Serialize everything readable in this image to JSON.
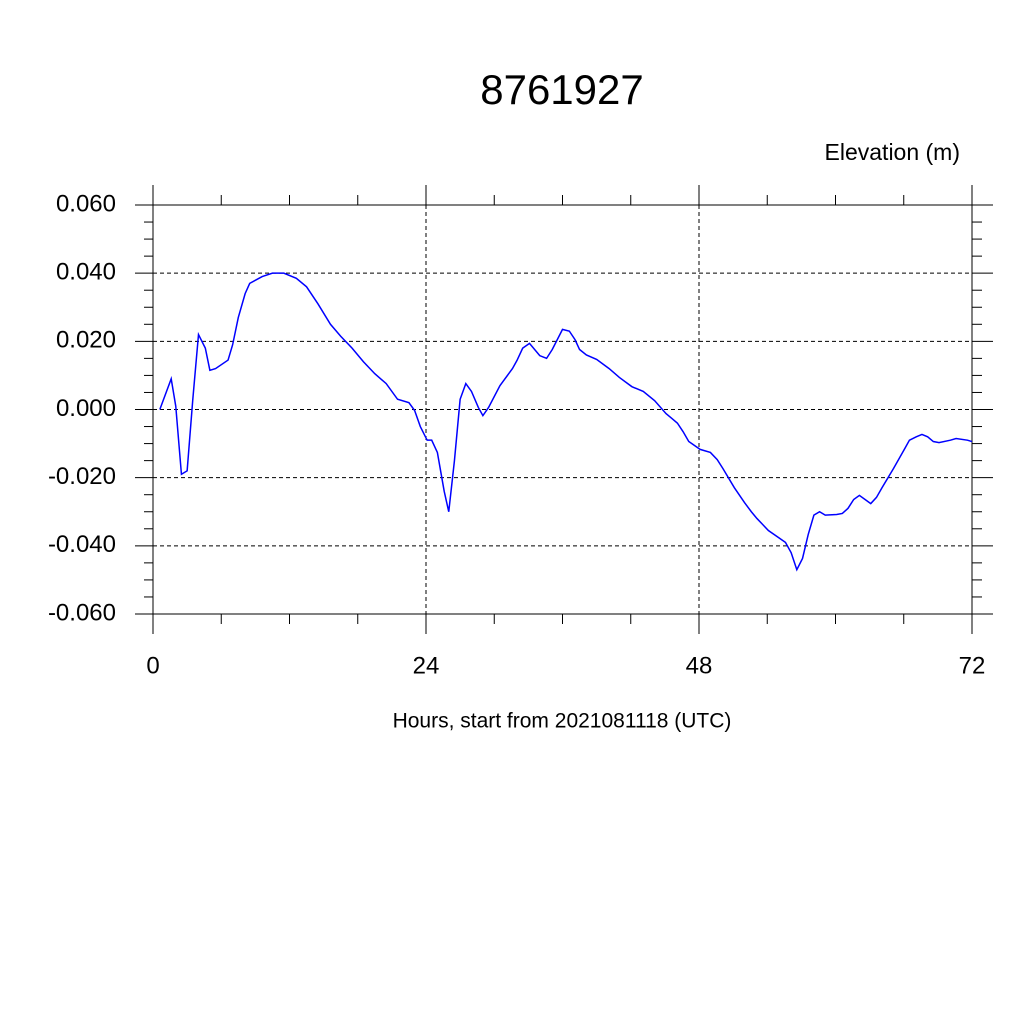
{
  "chart_data": {
    "type": "line",
    "title": "8761927",
    "subtitle": "Elevation (m)",
    "x_label": "Hours, start from 2021081118 (UTC)",
    "xlim": [
      0,
      72
    ],
    "xticks": [
      0,
      24,
      48,
      72
    ],
    "ylim": [
      -0.06,
      0.06
    ],
    "yticks": [
      {
        "value": -0.06,
        "label": "-0.060"
      },
      {
        "value": -0.04,
        "label": "-0.040"
      },
      {
        "value": -0.02,
        "label": "-0.020"
      },
      {
        "value": 0,
        "label": "0.000"
      },
      {
        "value": 0.02,
        "label": "0.020"
      },
      {
        "value": 0.04,
        "label": "0.040"
      },
      {
        "value": 0.06,
        "label": "0.060"
      }
    ],
    "grid": true,
    "x": [
      0.6,
      1.6,
      2.0,
      2.5,
      3.0,
      3.5,
      4.0,
      4.6,
      5.0,
      5.5,
      6.6,
      7.0,
      7.5,
      8.1,
      8.5,
      9.6,
      10.5,
      11.5,
      12.6,
      13.5,
      14.5,
      15.6,
      16.5,
      17.5,
      18.5,
      19.5,
      20.5,
      21.5,
      22.5,
      23.0,
      23.5,
      24.1,
      24.5,
      25.0,
      25.6,
      26.0,
      26.5,
      27.0,
      27.5,
      28.0,
      28.6,
      29.0,
      29.5,
      30.5,
      31.6,
      32.0,
      32.5,
      33.1,
      34.0,
      34.6,
      35.1,
      36.0,
      36.6,
      37.1,
      37.5,
      38.1,
      39.0,
      40.1,
      41.0,
      42.1,
      43.1,
      44.1,
      45.1,
      45.6,
      46.1,
      46.6,
      47.1,
      48.1,
      49.0,
      49.6,
      50.1,
      51.1,
      52.0,
      52.6,
      53.1,
      54.1,
      55.0,
      55.6,
      56.1,
      56.6,
      57.1,
      57.6,
      58.1,
      58.6,
      59.1,
      60.1,
      60.6,
      61.1,
      61.6,
      62.1,
      62.6,
      63.1,
      63.6,
      64.1,
      65.1,
      66.1,
      66.5,
      67.1,
      67.6,
      68.1,
      68.6,
      69.1,
      70.1,
      70.6,
      71.6,
      72.0
    ],
    "series": [
      {
        "color": "#0000ff",
        "values": [
          0,
          0.009,
          0.001,
          -0.019,
          -0.018,
          0.003,
          0.022,
          0.018,
          0.0115,
          0.012,
          0.0145,
          0.019,
          0.027,
          0.034,
          0.037,
          0.039,
          0.04,
          0.04,
          0.0385,
          0.036,
          0.031,
          0.025,
          0.0215,
          0.018,
          0.014,
          0.0105,
          0.0076,
          0.003,
          0.002,
          -0.0003,
          -0.005,
          -0.009,
          -0.009,
          -0.0126,
          -0.024,
          -0.03,
          -0.015,
          0.003,
          0.0076,
          0.0053,
          0.0006,
          -0.0018,
          0.0006,
          0.007,
          0.012,
          0.0144,
          0.018,
          0.0194,
          0.0158,
          0.015,
          0.0176,
          0.0235,
          0.023,
          0.0205,
          0.0176,
          0.016,
          0.0147,
          0.012,
          0.0094,
          0.0067,
          0.0053,
          0.0026,
          -0.0012,
          -0.0026,
          -0.004,
          -0.0065,
          -0.0094,
          -0.0117,
          -0.0126,
          -0.0147,
          -0.0173,
          -0.0229,
          -0.0273,
          -0.03,
          -0.032,
          -0.0355,
          -0.0376,
          -0.039,
          -0.042,
          -0.047,
          -0.0437,
          -0.0367,
          -0.031,
          -0.03,
          -0.031,
          -0.0308,
          -0.0305,
          -0.029,
          -0.0264,
          -0.0252,
          -0.0264,
          -0.0276,
          -0.0258,
          -0.0229,
          -0.0173,
          -0.0114,
          -0.009,
          -0.008,
          -0.0073,
          -0.008,
          -0.0094,
          -0.0097,
          -0.009,
          -0.0085,
          -0.009,
          -0.0094
        ]
      }
    ]
  }
}
